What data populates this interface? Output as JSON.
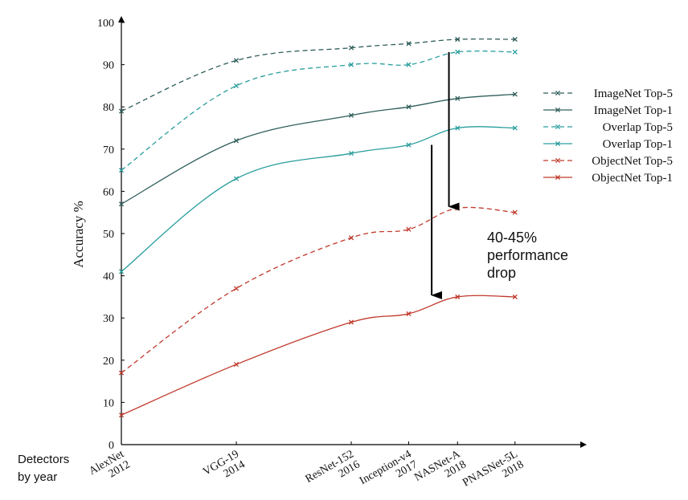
{
  "chart_data": {
    "type": "line",
    "title": "",
    "xlabel": "Detectors by year",
    "ylabel": "Accuracy %",
    "ylim": [
      0,
      100
    ],
    "yticks": [
      0,
      10,
      20,
      30,
      40,
      50,
      60,
      70,
      80,
      90,
      100
    ],
    "grid": false,
    "legend_position": "right",
    "categories": [
      {
        "name": "AlexNet",
        "year": "2012",
        "x": 2012.0
      },
      {
        "name": "VGG-19",
        "year": "2014",
        "x": 2014.0
      },
      {
        "name": "ResNet-152",
        "year": "2016",
        "x": 2016.0
      },
      {
        "name": "Inception-v4",
        "year": "2017",
        "x": 2017.0
      },
      {
        "name": "NASNet-A",
        "year": "2018",
        "x": 2017.85
      },
      {
        "name": "PNASNet-5L",
        "year": "2018",
        "x": 2018.85
      }
    ],
    "series": [
      {
        "name": "ImageNet Top-5",
        "color": "#2e5e5a",
        "dashed": true,
        "values": [
          79,
          91,
          94,
          95,
          96,
          96
        ]
      },
      {
        "name": "ImageNet Top-1",
        "color": "#2e5e5a",
        "dashed": false,
        "values": [
          57,
          72,
          78,
          80,
          82,
          83
        ]
      },
      {
        "name": "Overlap Top-5",
        "color": "#2a9d9d",
        "dashed": true,
        "values": [
          65,
          85,
          90,
          90,
          93,
          93
        ]
      },
      {
        "name": "Overlap Top-1",
        "color": "#2a9d9d",
        "dashed": false,
        "values": [
          41,
          63,
          69,
          71,
          75,
          75
        ]
      },
      {
        "name": "ObjectNet Top-5",
        "color": "#c0392b",
        "dashed": true,
        "values": [
          17,
          37,
          49,
          51,
          56,
          55
        ]
      },
      {
        "name": "ObjectNet Top-1",
        "color": "#c0392b",
        "dashed": false,
        "values": [
          7,
          19,
          29,
          31,
          35,
          35
        ]
      }
    ],
    "annotations": [
      {
        "text_lines": [
          "40-45%",
          "performance",
          "drop"
        ]
      }
    ],
    "arrows": [
      {
        "x": 2017.7,
        "from": 93,
        "to": 56
      },
      {
        "x": 2017.4,
        "from": 71,
        "to": 35
      }
    ]
  }
}
